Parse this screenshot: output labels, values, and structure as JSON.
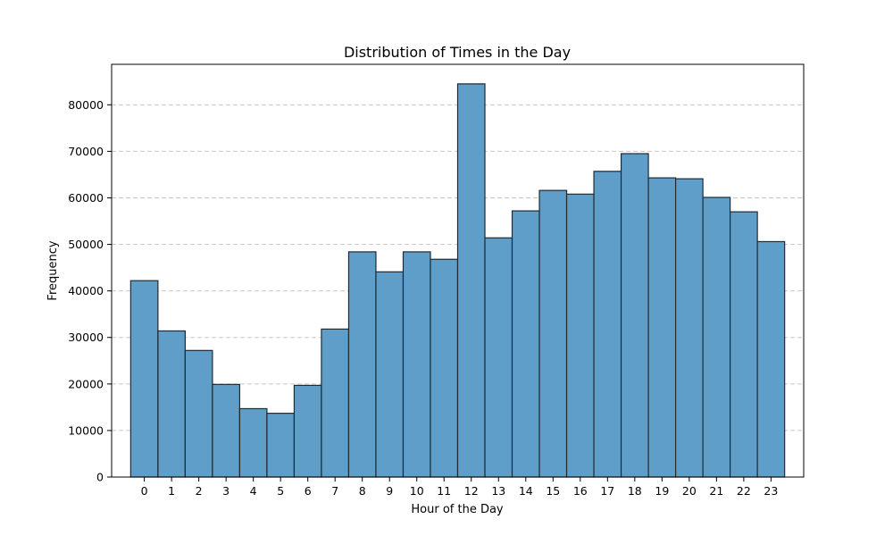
{
  "chart_data": {
    "type": "bar",
    "title": "Distribution of Times in the Day",
    "xlabel": "Hour of the Day",
    "ylabel": "Frequency",
    "categories": [
      "0",
      "1",
      "2",
      "3",
      "4",
      "5",
      "6",
      "7",
      "8",
      "9",
      "10",
      "11",
      "12",
      "13",
      "14",
      "15",
      "16",
      "17",
      "18",
      "19",
      "20",
      "21",
      "22",
      "23"
    ],
    "values": [
      42200,
      31400,
      27200,
      19900,
      14700,
      13700,
      19700,
      31800,
      48400,
      44100,
      48400,
      46800,
      84500,
      51400,
      57200,
      61600,
      60800,
      65700,
      69500,
      64300,
      64100,
      60100,
      57000,
      50600
    ],
    "yticks": [
      0,
      10000,
      20000,
      30000,
      40000,
      50000,
      60000,
      70000,
      80000
    ],
    "ylim": [
      0,
      88700
    ],
    "xlim": [
      -1.2,
      24.2
    ],
    "grid": {
      "y": true,
      "x": false,
      "style": "dashed"
    },
    "bar_color": "#5f9ec9",
    "bar_edge_color": "#1f2a33",
    "grid_color": "#c8c8c8"
  }
}
